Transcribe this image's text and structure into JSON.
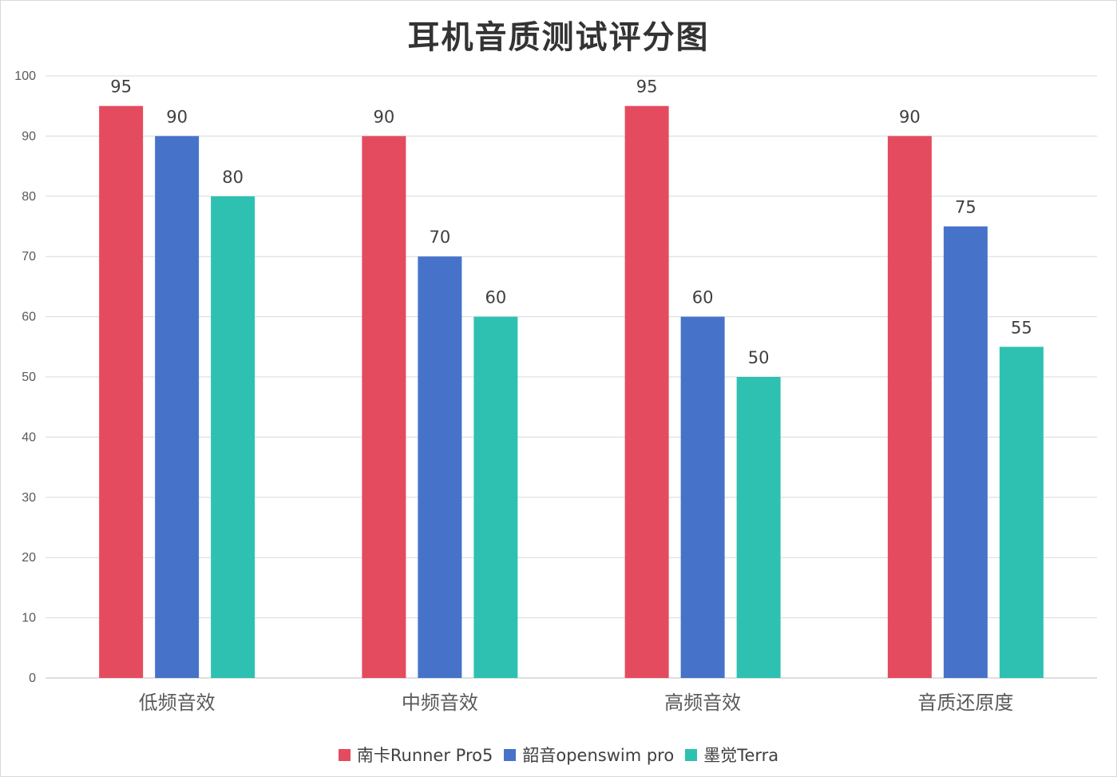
{
  "chart_data": {
    "type": "bar",
    "title": "耳机音质测试评分图",
    "categories": [
      "低频音效",
      "中频音效",
      "高频音效",
      "音质还原度"
    ],
    "series": [
      {
        "name": "南卡Runner Pro5",
        "color": "#e54b5e",
        "values": [
          95,
          90,
          95,
          90
        ]
      },
      {
        "name": "韶音openswim pro",
        "color": "#4673c9",
        "values": [
          90,
          70,
          60,
          75
        ]
      },
      {
        "name": "墨觉Terra",
        "color": "#2ec1b1",
        "values": [
          80,
          60,
          50,
          55
        ]
      }
    ],
    "ylim": [
      0,
      100
    ],
    "yticks": [
      0,
      10,
      20,
      30,
      40,
      50,
      60,
      70,
      80,
      90,
      100
    ],
    "grid": true,
    "data_labels": true,
    "legend_position": "bottom"
  }
}
